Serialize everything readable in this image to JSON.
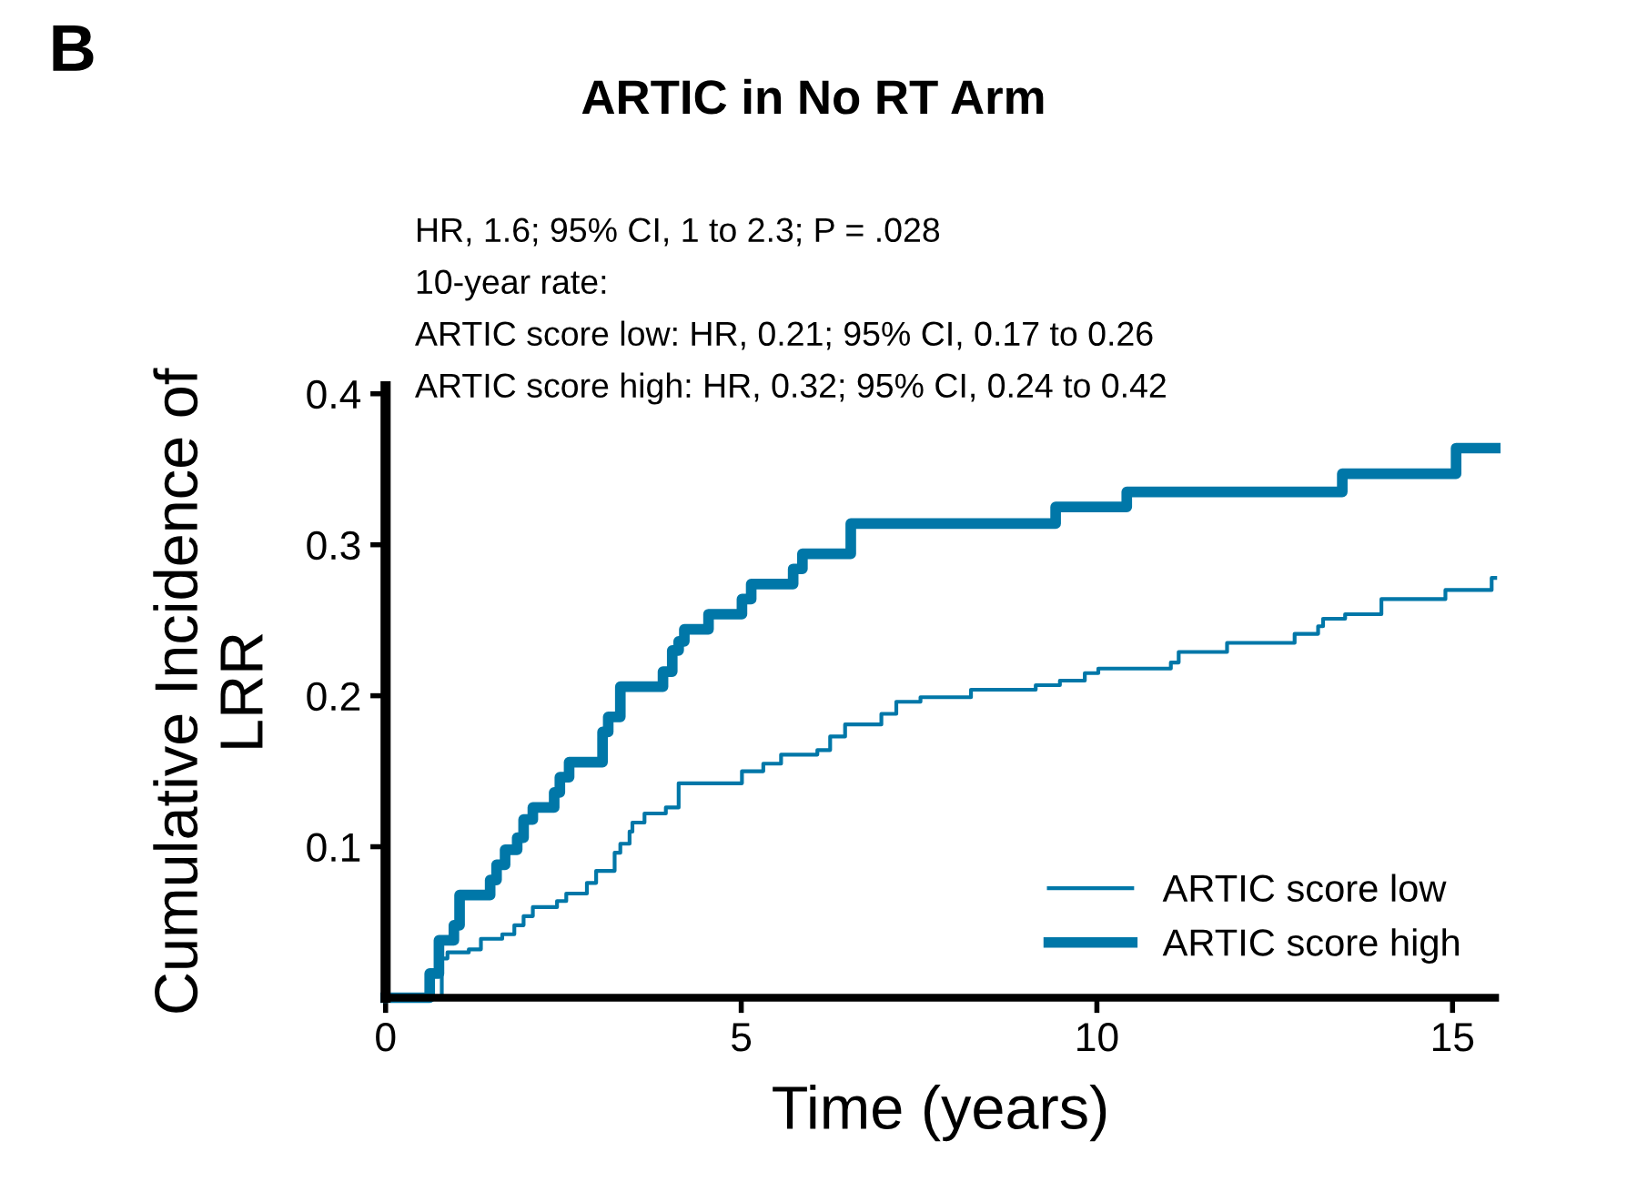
{
  "chart_data": {
    "type": "step",
    "title": "ARTIC in No RT Arm",
    "xlabel": "Time (years)",
    "ylabel": "Cumulative Incidence of\nLRR",
    "annotations": [
      "B",
      "HR, 1.6; 95% CI, 1 to 2.3; P = .028",
      "10-year rate:",
      "ARTIC score low: HR, 0.21; 95% CI, 0.17 to 0.26",
      "ARTIC score high: HR, 0.32; 95% CI, 0.24 to 0.42"
    ],
    "xlim": [
      0,
      15.6
    ],
    "xticks": [
      0,
      5,
      10,
      15
    ],
    "ylim": [
      0,
      0.405
    ],
    "yticks": [
      0.1,
      0.2,
      0.3,
      0.4
    ],
    "grid": false,
    "legend": "bottom right",
    "line_style": "solid",
    "marker": "none",
    "series": [
      {
        "name": "ARTIC score low",
        "color": "#0077a8",
        "x": [
          0,
          0.75,
          0.79,
          0.87,
          1.17,
          1.34,
          1.64,
          1.81,
          1.94,
          2.07,
          2.41,
          2.54,
          2.83,
          2.96,
          3.22,
          3.3,
          3.43,
          3.47,
          3.64,
          3.94,
          4.12,
          5.01,
          5.31,
          5.56,
          6.07,
          6.25,
          6.46,
          6.97,
          7.18,
          7.52,
          8.23,
          9.14,
          9.48,
          9.83,
          10.02,
          11.04,
          11.15,
          11.83,
          12.78,
          13.11,
          13.18,
          13.49,
          14.0,
          14.9,
          15.55,
          15.6
        ],
        "values": [
          0,
          0,
          0.026,
          0.03,
          0.032,
          0.039,
          0.042,
          0.048,
          0.054,
          0.06,
          0.064,
          0.069,
          0.076,
          0.084,
          0.096,
          0.102,
          0.11,
          0.116,
          0.122,
          0.126,
          0.142,
          0.15,
          0.155,
          0.161,
          0.164,
          0.173,
          0.181,
          0.188,
          0.196,
          0.199,
          0.204,
          0.207,
          0.21,
          0.215,
          0.218,
          0.222,
          0.229,
          0.235,
          0.241,
          0.246,
          0.251,
          0.254,
          0.264,
          0.27,
          0.278,
          0.278
        ]
      },
      {
        "name": "ARTIC score high",
        "color": "#0077a8",
        "x": [
          0,
          0.58,
          0.62,
          0.75,
          0.96,
          1.04,
          1.47,
          1.56,
          1.68,
          1.85,
          1.94,
          2.07,
          2.37,
          2.45,
          2.58,
          3.05,
          3.13,
          3.3,
          3.9,
          4.03,
          4.12,
          4.2,
          4.54,
          5.01,
          5.14,
          5.73,
          5.86,
          6.54,
          9.42,
          10.42,
          13.45,
          15.05,
          15.6
        ],
        "values": [
          0,
          0,
          0.016,
          0.038,
          0.048,
          0.068,
          0.078,
          0.088,
          0.098,
          0.106,
          0.118,
          0.126,
          0.136,
          0.146,
          0.156,
          0.176,
          0.186,
          0.206,
          0.216,
          0.23,
          0.236,
          0.244,
          0.254,
          0.264,
          0.274,
          0.284,
          0.294,
          0.314,
          0.325,
          0.335,
          0.347,
          0.364,
          0.364
        ]
      }
    ]
  }
}
